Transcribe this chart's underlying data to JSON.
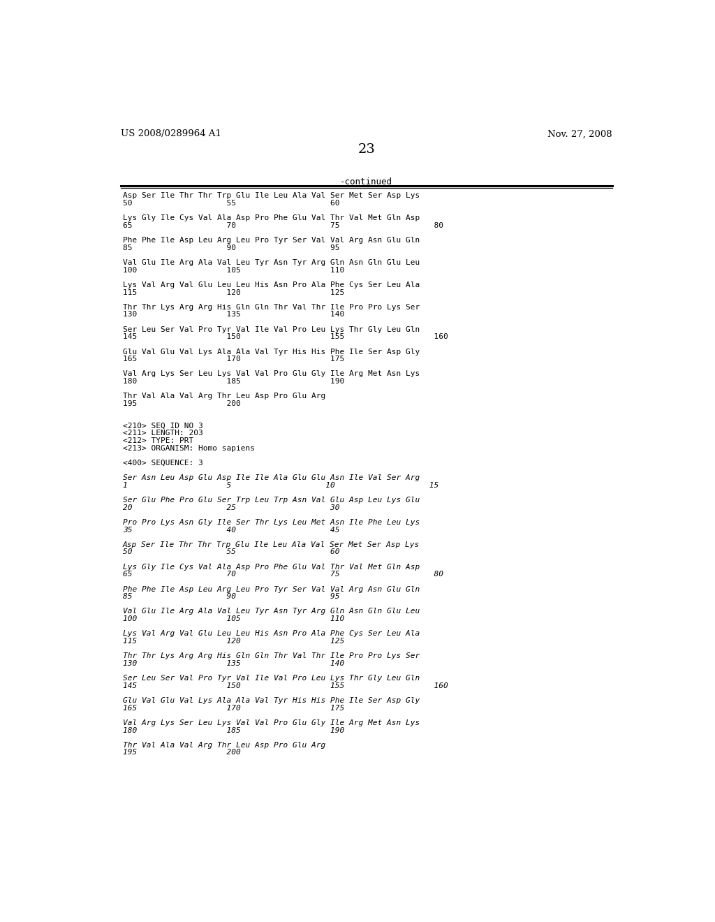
{
  "header_left": "US 2008/0289964 A1",
  "header_right": "Nov. 27, 2008",
  "page_number": "23",
  "continued_label": "-continued",
  "background_color": "#ffffff",
  "text_color": "#000000",
  "lines": [
    {
      "text": "Asp Ser Ile Thr Thr Trp Glu Ile Leu Ala Val Ser Met Ser Asp Lys",
      "style": "normal"
    },
    {
      "text": "50                    55                    60",
      "style": "normal"
    },
    {
      "text": "",
      "style": "normal"
    },
    {
      "text": "Lys Gly Ile Cys Val Ala Asp Pro Phe Glu Val Thr Val Met Gln Asp",
      "style": "normal"
    },
    {
      "text": "65                    70                    75                    80",
      "style": "normal"
    },
    {
      "text": "",
      "style": "normal"
    },
    {
      "text": "Phe Phe Ile Asp Leu Arg Leu Pro Tyr Ser Val Val Arg Asn Glu Gln",
      "style": "normal"
    },
    {
      "text": "85                    90                    95",
      "style": "normal"
    },
    {
      "text": "",
      "style": "normal"
    },
    {
      "text": "Val Glu Ile Arg Ala Val Leu Tyr Asn Tyr Arg Gln Asn Gln Glu Leu",
      "style": "normal"
    },
    {
      "text": "100                   105                   110",
      "style": "normal"
    },
    {
      "text": "",
      "style": "normal"
    },
    {
      "text": "Lys Val Arg Val Glu Leu Leu His Asn Pro Ala Phe Cys Ser Leu Ala",
      "style": "normal"
    },
    {
      "text": "115                   120                   125",
      "style": "normal"
    },
    {
      "text": "",
      "style": "normal"
    },
    {
      "text": "Thr Thr Lys Arg Arg His Gln Gln Thr Val Thr Ile Pro Pro Lys Ser",
      "style": "normal"
    },
    {
      "text": "130                   135                   140",
      "style": "normal"
    },
    {
      "text": "",
      "style": "normal"
    },
    {
      "text": "Ser Leu Ser Val Pro Tyr Val Ile Val Pro Leu Lys Thr Gly Leu Gln",
      "style": "normal"
    },
    {
      "text": "145                   150                   155                   160",
      "style": "normal"
    },
    {
      "text": "",
      "style": "normal"
    },
    {
      "text": "Glu Val Glu Val Lys Ala Ala Val Tyr His His Phe Ile Ser Asp Gly",
      "style": "normal"
    },
    {
      "text": "165                   170                   175",
      "style": "normal"
    },
    {
      "text": "",
      "style": "normal"
    },
    {
      "text": "Val Arg Lys Ser Leu Lys Val Val Pro Glu Gly Ile Arg Met Asn Lys",
      "style": "normal"
    },
    {
      "text": "180                   185                   190",
      "style": "normal"
    },
    {
      "text": "",
      "style": "normal"
    },
    {
      "text": "Thr Val Ala Val Arg Thr Leu Asp Pro Glu Arg",
      "style": "normal"
    },
    {
      "text": "195                   200",
      "style": "normal"
    },
    {
      "text": "",
      "style": "normal"
    },
    {
      "text": "",
      "style": "normal"
    },
    {
      "text": "<210> SEQ ID NO 3",
      "style": "normal"
    },
    {
      "text": "<211> LENGTH: 203",
      "style": "normal"
    },
    {
      "text": "<212> TYPE: PRT",
      "style": "normal"
    },
    {
      "text": "<213> ORGANISM: Homo sapiens",
      "style": "normal"
    },
    {
      "text": "",
      "style": "normal"
    },
    {
      "text": "<400> SEQUENCE: 3",
      "style": "normal"
    },
    {
      "text": "",
      "style": "normal"
    },
    {
      "text": "Ser Asn Leu Asp Glu Asp Ile Ile Ala Glu Glu Asn Ile Val Ser Arg",
      "style": "italic"
    },
    {
      "text": "1                     5                    10                    15",
      "style": "italic"
    },
    {
      "text": "",
      "style": "normal"
    },
    {
      "text": "Ser Glu Phe Pro Glu Ser Trp Leu Trp Asn Val Glu Asp Leu Lys Glu",
      "style": "italic"
    },
    {
      "text": "20                    25                    30",
      "style": "italic"
    },
    {
      "text": "",
      "style": "normal"
    },
    {
      "text": "Pro Pro Lys Asn Gly Ile Ser Thr Lys Leu Met Asn Ile Phe Leu Lys",
      "style": "italic"
    },
    {
      "text": "35                    40                    45",
      "style": "italic"
    },
    {
      "text": "",
      "style": "normal"
    },
    {
      "text": "Asp Ser Ile Thr Thr Trp Glu Ile Leu Ala Val Ser Met Ser Asp Lys",
      "style": "italic"
    },
    {
      "text": "50                    55                    60",
      "style": "italic"
    },
    {
      "text": "",
      "style": "normal"
    },
    {
      "text": "Lys Gly Ile Cys Val Ala Asp Pro Phe Glu Val Thr Val Met Gln Asp",
      "style": "italic"
    },
    {
      "text": "65                    70                    75                    80",
      "style": "italic"
    },
    {
      "text": "",
      "style": "normal"
    },
    {
      "text": "Phe Phe Ile Asp Leu Arg Leu Pro Tyr Ser Val Val Arg Asn Glu Gln",
      "style": "italic"
    },
    {
      "text": "85                    90                    95",
      "style": "italic"
    },
    {
      "text": "",
      "style": "normal"
    },
    {
      "text": "Val Glu Ile Arg Ala Val Leu Tyr Asn Tyr Arg Gln Asn Gln Glu Leu",
      "style": "italic"
    },
    {
      "text": "100                   105                   110",
      "style": "italic"
    },
    {
      "text": "",
      "style": "normal"
    },
    {
      "text": "Lys Val Arg Val Glu Leu Leu His Asn Pro Ala Phe Cys Ser Leu Ala",
      "style": "italic"
    },
    {
      "text": "115                   120                   125",
      "style": "italic"
    },
    {
      "text": "",
      "style": "normal"
    },
    {
      "text": "Thr Thr Lys Arg Arg His Gln Gln Thr Val Thr Ile Pro Pro Lys Ser",
      "style": "italic"
    },
    {
      "text": "130                   135                   140",
      "style": "italic"
    },
    {
      "text": "",
      "style": "normal"
    },
    {
      "text": "Ser Leu Ser Val Pro Tyr Val Ile Val Pro Leu Lys Thr Gly Leu Gln",
      "style": "italic"
    },
    {
      "text": "145                   150                   155                   160",
      "style": "italic"
    },
    {
      "text": "",
      "style": "normal"
    },
    {
      "text": "Glu Val Glu Val Lys Ala Ala Val Tyr His His Phe Ile Ser Asp Gly",
      "style": "italic"
    },
    {
      "text": "165                   170                   175",
      "style": "italic"
    },
    {
      "text": "",
      "style": "normal"
    },
    {
      "text": "Val Arg Lys Ser Leu Lys Val Val Pro Glu Gly Ile Arg Met Asn Lys",
      "style": "italic"
    },
    {
      "text": "180                   185                   190",
      "style": "italic"
    },
    {
      "text": "",
      "style": "normal"
    },
    {
      "text": "Thr Val Ala Val Arg Thr Leu Asp Pro Glu Arg",
      "style": "italic"
    },
    {
      "text": "195                   200",
      "style": "italic"
    }
  ]
}
